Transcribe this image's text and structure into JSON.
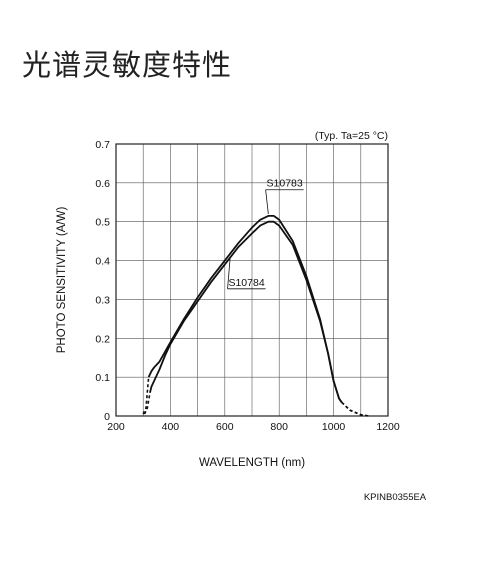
{
  "page": {
    "title": "光谱灵敏度特性"
  },
  "chart_data": {
    "type": "line",
    "title": "",
    "condition": "(Typ. Ta=25 °C)",
    "xlabel": "WAVELENGTH (nm)",
    "ylabel": "PHOTO SENSITIVITY (A/W)",
    "xlim": [
      200,
      1200
    ],
    "ylim": [
      0,
      0.7
    ],
    "xticks": [
      "200",
      "400",
      "600",
      "800",
      "1000",
      "1200"
    ],
    "yticks": [
      "0",
      "0.1",
      "0.2",
      "0.3",
      "0.4",
      "0.5",
      "0.6",
      "0.7"
    ],
    "grid": true,
    "figure_code": "KPINB0355EA",
    "series": [
      {
        "name": "S10783",
        "solid": [
          [
            320,
            0.1
          ],
          [
            330,
            0.115
          ],
          [
            340,
            0.125
          ],
          [
            360,
            0.14
          ],
          [
            380,
            0.165
          ],
          [
            400,
            0.19
          ],
          [
            450,
            0.25
          ],
          [
            500,
            0.305
          ],
          [
            550,
            0.355
          ],
          [
            600,
            0.4
          ],
          [
            650,
            0.445
          ],
          [
            700,
            0.485
          ],
          [
            730,
            0.505
          ],
          [
            760,
            0.515
          ],
          [
            780,
            0.515
          ],
          [
            800,
            0.505
          ],
          [
            850,
            0.45
          ],
          [
            900,
            0.36
          ],
          [
            950,
            0.25
          ],
          [
            980,
            0.16
          ],
          [
            1000,
            0.09
          ],
          [
            1020,
            0.045
          ],
          [
            1030,
            0.035
          ]
        ],
        "dashed": [
          [
            300,
            0.005
          ],
          [
            310,
            0.02
          ],
          [
            320,
            0.1
          ]
        ],
        "dashed_tail": [
          [
            1030,
            0.035
          ],
          [
            1060,
            0.015
          ],
          [
            1100,
            0.003
          ],
          [
            1130,
            0.0
          ]
        ]
      },
      {
        "name": "S10784",
        "solid": [
          [
            325,
            0.06
          ],
          [
            330,
            0.075
          ],
          [
            340,
            0.09
          ],
          [
            360,
            0.12
          ],
          [
            380,
            0.155
          ],
          [
            400,
            0.185
          ],
          [
            450,
            0.245
          ],
          [
            500,
            0.295
          ],
          [
            550,
            0.345
          ],
          [
            600,
            0.39
          ],
          [
            650,
            0.435
          ],
          [
            700,
            0.47
          ],
          [
            730,
            0.49
          ],
          [
            760,
            0.5
          ],
          [
            780,
            0.5
          ],
          [
            800,
            0.49
          ],
          [
            850,
            0.44
          ],
          [
            900,
            0.35
          ],
          [
            950,
            0.245
          ],
          [
            980,
            0.16
          ],
          [
            1000,
            0.09
          ],
          [
            1020,
            0.045
          ],
          [
            1030,
            0.035
          ]
        ],
        "dashed": [
          [
            305,
            0.005
          ],
          [
            315,
            0.02
          ],
          [
            325,
            0.06
          ]
        ],
        "dashed_tail": [
          [
            1030,
            0.035
          ],
          [
            1060,
            0.015
          ],
          [
            1100,
            0.003
          ],
          [
            1130,
            0.0
          ]
        ]
      }
    ],
    "annotations": [
      {
        "text": "S10783",
        "target": [
          760,
          0.52
        ],
        "label_at": [
          820,
          0.59
        ]
      },
      {
        "text": "S10784",
        "target": [
          620,
          0.41
        ],
        "label_at": [
          680,
          0.335
        ]
      }
    ]
  }
}
